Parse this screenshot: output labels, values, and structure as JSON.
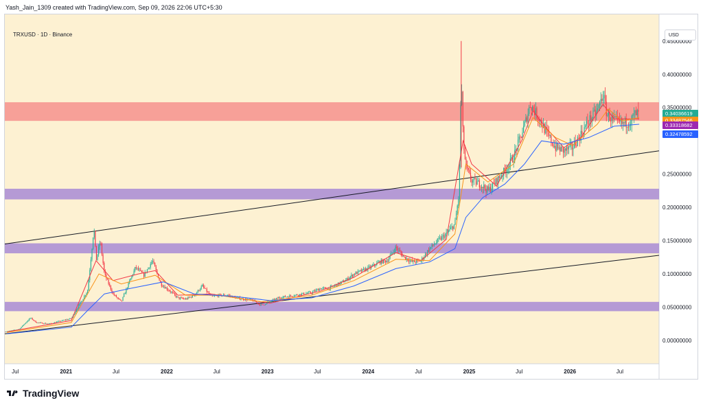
{
  "header": {
    "credit": "Yash_Jain_1309 created with TradingView.com, Sep 09, 2026 22:06 UTC+5:30"
  },
  "symbol": {
    "label": "TRXUSD · 1D · Binance"
  },
  "currency": {
    "label": "USD"
  },
  "footer": {
    "brand": "TradingView"
  },
  "price_tags": [
    {
      "value": "0.34036619",
      "color": "#22ab94"
    },
    {
      "value": "0.33487546",
      "color": "#f7931a"
    },
    {
      "value": "0.33318682",
      "color": "#9c27b0"
    },
    {
      "value": "0.32478592",
      "color": "#2962ff"
    }
  ],
  "colors": {
    "background": "#fdf1d2",
    "resistance_zone": "#f4848480",
    "support_zone": "#9c7cd6b3",
    "candle_up": "#22ab94",
    "candle_down": "#f23645",
    "ma_short": "#f23645",
    "ma_mid": "#f7931a",
    "ma_long": "#2962ff"
  },
  "chart_data": {
    "type": "candlestick",
    "title": "",
    "y_ticks": [
      "0.45000000",
      "0.40000000",
      "0.35000000",
      "0.25000000",
      "0.20000000",
      "0.15000000",
      "0.10000000",
      "0.05000000",
      "0.00000000"
    ],
    "y_tick_values": [
      0.45,
      0.4,
      0.35,
      0.25,
      0.2,
      0.15,
      0.1,
      0.05,
      0.0
    ],
    "ylim": [
      -0.035,
      0.49
    ],
    "x_ticks": [
      "Jul",
      "2021",
      "Jul",
      "2022",
      "Jul",
      "2023",
      "Jul",
      "2024",
      "Jul",
      "2025",
      "Jul",
      "2026",
      "Jul"
    ],
    "x_tick_dates": [
      "2020-07-01",
      "2021-01-01",
      "2021-07-01",
      "2022-01-01",
      "2022-07-01",
      "2023-01-01",
      "2023-07-01",
      "2024-01-01",
      "2024-07-01",
      "2025-01-01",
      "2025-07-01",
      "2026-01-01",
      "2026-07-01"
    ],
    "xlim": [
      "2020-05-24",
      "2026-11-20"
    ],
    "zones": [
      {
        "kind": "resistance",
        "low": 0.33,
        "high": 0.358
      },
      {
        "kind": "support",
        "low": 0.212,
        "high": 0.228
      },
      {
        "kind": "support",
        "low": 0.131,
        "high": 0.146
      },
      {
        "kind": "support",
        "low": 0.044,
        "high": 0.058
      }
    ],
    "trendlines": [
      {
        "from": [
          "2020-05-24",
          0.145
        ],
        "to": [
          "2026-11-20",
          0.285
        ]
      },
      {
        "from": [
          "2020-05-24",
          0.01
        ],
        "to": [
          "2026-11-20",
          0.128
        ]
      }
    ],
    "price_path": [
      [
        "2020-05-24",
        0.013
      ],
      [
        "2020-07-15",
        0.017
      ],
      [
        "2020-08-25",
        0.034
      ],
      [
        "2020-09-15",
        0.027
      ],
      [
        "2020-11-01",
        0.025
      ],
      [
        "2020-12-20",
        0.03
      ],
      [
        "2021-01-20",
        0.033
      ],
      [
        "2021-02-20",
        0.055
      ],
      [
        "2021-03-20",
        0.075
      ],
      [
        "2021-04-05",
        0.14
      ],
      [
        "2021-04-12",
        0.17
      ],
      [
        "2021-04-20",
        0.12
      ],
      [
        "2021-05-05",
        0.15
      ],
      [
        "2021-05-20",
        0.1
      ],
      [
        "2021-06-20",
        0.07
      ],
      [
        "2021-07-20",
        0.058
      ],
      [
        "2021-08-20",
        0.09
      ],
      [
        "2021-09-10",
        0.11
      ],
      [
        "2021-10-10",
        0.098
      ],
      [
        "2021-11-10",
        0.12
      ],
      [
        "2021-12-10",
        0.085
      ],
      [
        "2022-01-10",
        0.075
      ],
      [
        "2022-02-10",
        0.064
      ],
      [
        "2022-03-10",
        0.062
      ],
      [
        "2022-04-10",
        0.068
      ],
      [
        "2022-05-10",
        0.082
      ],
      [
        "2022-06-10",
        0.066
      ],
      [
        "2022-07-10",
        0.068
      ],
      [
        "2022-08-10",
        0.068
      ],
      [
        "2022-09-10",
        0.064
      ],
      [
        "2022-10-10",
        0.062
      ],
      [
        "2022-11-10",
        0.06
      ],
      [
        "2022-12-10",
        0.053
      ],
      [
        "2023-01-10",
        0.058
      ],
      [
        "2023-02-10",
        0.064
      ],
      [
        "2023-04-10",
        0.068
      ],
      [
        "2023-06-10",
        0.072
      ],
      [
        "2023-07-10",
        0.078
      ],
      [
        "2023-08-10",
        0.078
      ],
      [
        "2023-10-10",
        0.09
      ],
      [
        "2023-11-10",
        0.1
      ],
      [
        "2023-12-10",
        0.105
      ],
      [
        "2024-01-10",
        0.11
      ],
      [
        "2024-02-10",
        0.118
      ],
      [
        "2024-03-10",
        0.12
      ],
      [
        "2024-04-10",
        0.14
      ],
      [
        "2024-05-10",
        0.125
      ],
      [
        "2024-06-10",
        0.118
      ],
      [
        "2024-07-10",
        0.12
      ],
      [
        "2024-08-10",
        0.138
      ],
      [
        "2024-09-10",
        0.15
      ],
      [
        "2024-10-10",
        0.16
      ],
      [
        "2024-11-10",
        0.175
      ],
      [
        "2024-11-25",
        0.22
      ],
      [
        "2024-12-03",
        0.4
      ],
      [
        "2024-12-10",
        0.3
      ],
      [
        "2024-12-20",
        0.26
      ],
      [
        "2025-01-10",
        0.24
      ],
      [
        "2025-02-10",
        0.235
      ],
      [
        "2025-03-10",
        0.225
      ],
      [
        "2025-04-10",
        0.24
      ],
      [
        "2025-05-10",
        0.255
      ],
      [
        "2025-06-10",
        0.275
      ],
      [
        "2025-07-10",
        0.31
      ],
      [
        "2025-07-25",
        0.33
      ],
      [
        "2025-08-10",
        0.355
      ],
      [
        "2025-08-25",
        0.345
      ],
      [
        "2025-09-10",
        0.335
      ],
      [
        "2025-10-10",
        0.31
      ],
      [
        "2025-11-10",
        0.29
      ],
      [
        "2025-12-10",
        0.285
      ],
      [
        "2026-01-10",
        0.29
      ],
      [
        "2026-02-10",
        0.31
      ],
      [
        "2026-03-10",
        0.33
      ],
      [
        "2026-04-10",
        0.345
      ],
      [
        "2026-05-01",
        0.37
      ],
      [
        "2026-05-15",
        0.34
      ],
      [
        "2026-06-10",
        0.33
      ],
      [
        "2026-07-10",
        0.325
      ],
      [
        "2026-08-10",
        0.33
      ],
      [
        "2026-08-25",
        0.34
      ],
      [
        "2026-09-09",
        0.34
      ]
    ],
    "moving_averages": [
      {
        "color": "#f23645",
        "points": [
          [
            "2020-06-01",
            0.013
          ],
          [
            "2021-01-20",
            0.03
          ],
          [
            "2021-04-20",
            0.12
          ],
          [
            "2021-06-20",
            0.09
          ],
          [
            "2021-09-20",
            0.1
          ],
          [
            "2021-11-20",
            0.105
          ],
          [
            "2022-02-10",
            0.068
          ],
          [
            "2022-06-10",
            0.07
          ],
          [
            "2022-10-10",
            0.062
          ],
          [
            "2023-01-10",
            0.056
          ],
          [
            "2023-07-10",
            0.074
          ],
          [
            "2023-11-10",
            0.095
          ],
          [
            "2024-04-10",
            0.132
          ],
          [
            "2024-07-10",
            0.12
          ],
          [
            "2024-10-10",
            0.152
          ],
          [
            "2024-12-10",
            0.3
          ],
          [
            "2025-01-10",
            0.265
          ],
          [
            "2025-04-10",
            0.232
          ],
          [
            "2025-07-10",
            0.3
          ],
          [
            "2025-08-20",
            0.345
          ],
          [
            "2025-10-10",
            0.318
          ],
          [
            "2025-12-10",
            0.29
          ],
          [
            "2026-02-10",
            0.305
          ],
          [
            "2026-05-01",
            0.355
          ],
          [
            "2026-06-10",
            0.333
          ],
          [
            "2026-09-09",
            0.333
          ]
        ]
      },
      {
        "color": "#f7931a",
        "points": [
          [
            "2020-06-01",
            0.012
          ],
          [
            "2021-01-20",
            0.027
          ],
          [
            "2021-04-30",
            0.1
          ],
          [
            "2021-07-20",
            0.085
          ],
          [
            "2021-11-20",
            0.098
          ],
          [
            "2022-03-10",
            0.068
          ],
          [
            "2022-07-10",
            0.068
          ],
          [
            "2022-12-10",
            0.058
          ],
          [
            "2023-06-10",
            0.068
          ],
          [
            "2023-11-10",
            0.09
          ],
          [
            "2024-04-10",
            0.122
          ],
          [
            "2024-08-10",
            0.12
          ],
          [
            "2024-11-10",
            0.16
          ],
          [
            "2024-12-20",
            0.265
          ],
          [
            "2025-03-10",
            0.238
          ],
          [
            "2025-06-10",
            0.265
          ],
          [
            "2025-08-20",
            0.335
          ],
          [
            "2025-11-10",
            0.305
          ],
          [
            "2026-01-10",
            0.293
          ],
          [
            "2026-04-10",
            0.325
          ],
          [
            "2026-05-20",
            0.348
          ],
          [
            "2026-07-10",
            0.33
          ],
          [
            "2026-09-09",
            0.335
          ]
        ]
      },
      {
        "color": "#2962ff",
        "points": [
          [
            "2020-06-01",
            0.01
          ],
          [
            "2021-01-20",
            0.02
          ],
          [
            "2021-03-20",
            0.045
          ],
          [
            "2021-05-20",
            0.07
          ],
          [
            "2021-08-20",
            0.078
          ],
          [
            "2021-12-20",
            0.088
          ],
          [
            "2022-04-10",
            0.07
          ],
          [
            "2022-09-10",
            0.066
          ],
          [
            "2023-01-10",
            0.06
          ],
          [
            "2023-06-10",
            0.064
          ],
          [
            "2023-11-10",
            0.082
          ],
          [
            "2024-04-10",
            0.108
          ],
          [
            "2024-08-10",
            0.118
          ],
          [
            "2024-11-10",
            0.138
          ],
          [
            "2024-12-20",
            0.185
          ],
          [
            "2025-02-20",
            0.215
          ],
          [
            "2025-05-10",
            0.235
          ],
          [
            "2025-07-20",
            0.265
          ],
          [
            "2025-09-20",
            0.3
          ],
          [
            "2025-12-10",
            0.295
          ],
          [
            "2026-03-10",
            0.305
          ],
          [
            "2026-06-10",
            0.322
          ],
          [
            "2026-09-09",
            0.325
          ]
        ]
      }
    ]
  }
}
